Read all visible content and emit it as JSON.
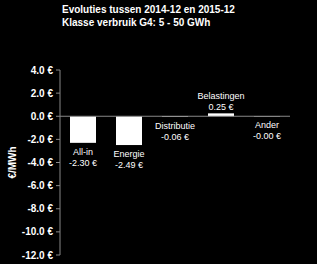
{
  "chart_data": {
    "type": "bar",
    "title": "Evoluties tussen 2014-12 en 2015-12",
    "subtitle": "Klasse verbruik G4: 5 - 50 GWh",
    "y_label": "€/MWh",
    "categories": [
      "All-in",
      "Energie",
      "Distributie",
      "Belastingen",
      "Ander"
    ],
    "values": [
      -2.3,
      -2.49,
      -0.06,
      0.25,
      0
    ],
    "value_labels": [
      "-2.30 €",
      "-2.49 €",
      "-0.06 €",
      "0.25 €",
      "-0.00 €"
    ],
    "color": "#ffffff",
    "ylim": [
      -12,
      4
    ],
    "yticks": [
      {
        "value": 4,
        "label": "4.0 €"
      },
      {
        "value": 2,
        "label": "2.0 €"
      },
      {
        "value": 0,
        "label": "0.0 €"
      },
      {
        "value": -2,
        "label": "-2.0 €"
      },
      {
        "value": -4,
        "label": "-4.0 €"
      },
      {
        "value": -6,
        "label": "-6.0 €"
      },
      {
        "value": -8,
        "label": "-8.0 €"
      },
      {
        "value": -10,
        "label": "-10.0 €"
      },
      {
        "value": -12,
        "label": "-12.0 €"
      }
    ],
    "grid": false,
    "data_labels": true,
    "tick_labels": "y"
  }
}
